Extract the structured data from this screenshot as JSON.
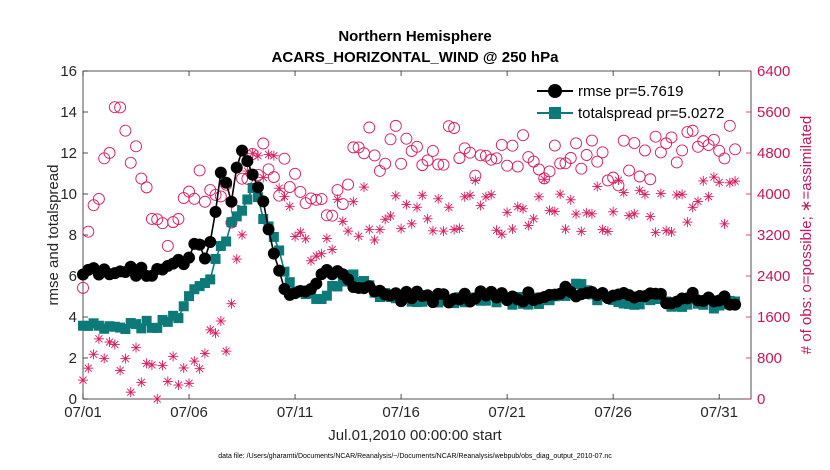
{
  "colors": {
    "rmse": "#000000",
    "spread": "#0c7a78",
    "obs": "#d81b60",
    "axis": "#262626"
  },
  "chart_data": {
    "type": "line",
    "title": "Northern Hemisphere",
    "subtitle": "ACARS_HORIZONTAL_WIND @ 250 hPa",
    "xlabel": "Jul.01,2010 00:00:00 start",
    "ylabel": "rmse and totalspread",
    "ylabel_right": "# of obs: o=possible; ∗=assimilated",
    "xlim": [
      0,
      31.5
    ],
    "ylim": [
      0,
      16
    ],
    "ylim_right": [
      0,
      6400
    ],
    "x_tick_values": [
      0,
      5,
      10,
      15,
      20,
      25,
      30
    ],
    "x_tick_labels": [
      "07/01",
      "07/06",
      "07/11",
      "07/16",
      "07/21",
      "07/26",
      "07/31"
    ],
    "y_ticks": [
      0,
      2,
      4,
      6,
      8,
      10,
      12,
      14,
      16
    ],
    "y_ticks_right": [
      0,
      800,
      1600,
      2400,
      3200,
      4000,
      4800,
      5600,
      6400
    ],
    "legend_position": "top-right",
    "footnote": "data file: /Users/gharamti/Documents/NCAR/Reanalysis/~/Documents/NCAR/Reanalysis/webpub/obs_diag_output_2010-07.nc",
    "series": [
      {
        "name": "rmse",
        "legend": "rmse pr=5.7619",
        "marker": "circle",
        "anchors": [
          [
            0,
            6.3
          ],
          [
            1.0,
            6.1
          ],
          [
            2.0,
            6.2
          ],
          [
            3.0,
            6.2
          ],
          [
            4.0,
            6.3
          ],
          [
            4.5,
            6.6
          ],
          [
            5.0,
            7.0
          ],
          [
            5.5,
            7.7
          ],
          [
            5.8,
            6.8
          ],
          [
            6.0,
            7.7
          ],
          [
            6.3,
            9.5
          ],
          [
            6.5,
            11.0
          ],
          [
            6.8,
            10.5
          ],
          [
            7.0,
            9.5
          ],
          [
            7.3,
            11.5
          ],
          [
            7.6,
            12.1
          ],
          [
            7.9,
            11.3
          ],
          [
            8.2,
            10.5
          ],
          [
            8.5,
            9.5
          ],
          [
            8.8,
            7.8
          ],
          [
            9.2,
            6.2
          ],
          [
            9.6,
            5.3
          ],
          [
            10.0,
            5.1
          ],
          [
            10.5,
            5.2
          ],
          [
            11.0,
            5.6
          ],
          [
            11.5,
            6.1
          ],
          [
            12.0,
            6.3
          ],
          [
            12.5,
            5.9
          ],
          [
            13.0,
            5.5
          ],
          [
            14.0,
            5.2
          ],
          [
            15.0,
            5.0
          ],
          [
            16.0,
            5.0
          ],
          [
            17.0,
            4.9
          ],
          [
            18.0,
            4.9
          ],
          [
            19.0,
            5.1
          ],
          [
            20.0,
            5.0
          ],
          [
            21.0,
            5.0
          ],
          [
            22.0,
            5.1
          ],
          [
            23.0,
            5.3
          ],
          [
            24.0,
            5.0
          ],
          [
            25.0,
            5.0
          ],
          [
            26.0,
            5.0
          ],
          [
            27.0,
            4.9
          ],
          [
            28.0,
            4.9
          ],
          [
            29.0,
            5.0
          ],
          [
            30.0,
            4.8
          ],
          [
            31.0,
            4.7
          ],
          [
            31.4,
            4.6
          ]
        ]
      },
      {
        "name": "totalspread",
        "legend": "totalspread pr=5.0272",
        "marker": "square",
        "anchors": [
          [
            0,
            3.5
          ],
          [
            1.0,
            3.5
          ],
          [
            2.0,
            3.5
          ],
          [
            3.0,
            3.6
          ],
          [
            4.0,
            3.7
          ],
          [
            4.5,
            4.0
          ],
          [
            5.0,
            4.8
          ],
          [
            5.5,
            5.5
          ],
          [
            6.0,
            6.0
          ],
          [
            6.5,
            7.3
          ],
          [
            7.0,
            8.5
          ],
          [
            7.5,
            9.2
          ],
          [
            7.8,
            9.6
          ],
          [
            8.1,
            10.7
          ],
          [
            8.5,
            8.8
          ],
          [
            9.0,
            8.0
          ],
          [
            9.5,
            6.4
          ],
          [
            10.0,
            5.4
          ],
          [
            10.5,
            5.0
          ],
          [
            11.0,
            5.0
          ],
          [
            11.5,
            5.2
          ],
          [
            12.0,
            5.6
          ],
          [
            12.5,
            6.1
          ],
          [
            13.0,
            5.7
          ],
          [
            13.5,
            5.5
          ],
          [
            14.0,
            5.0
          ],
          [
            15.0,
            4.9
          ],
          [
            16.0,
            4.8
          ],
          [
            17.0,
            4.8
          ],
          [
            18.0,
            4.8
          ],
          [
            19.0,
            4.9
          ],
          [
            20.0,
            4.8
          ],
          [
            21.0,
            4.8
          ],
          [
            22.0,
            4.9
          ],
          [
            23.0,
            5.2
          ],
          [
            23.5,
            5.6
          ],
          [
            24.0,
            4.9
          ],
          [
            25.0,
            4.8
          ],
          [
            26.0,
            4.8
          ],
          [
            27.0,
            4.7
          ],
          [
            28.0,
            4.7
          ],
          [
            29.0,
            4.7
          ],
          [
            30.0,
            4.6
          ],
          [
            31.0,
            4.6
          ],
          [
            31.4,
            4.6
          ]
        ]
      },
      {
        "name": "possible",
        "marker": "open-circle",
        "axis": "right",
        "anchors": [
          [
            0,
            2400
          ],
          [
            1.0,
            4400
          ],
          [
            1.5,
            5300
          ],
          [
            2.0,
            5400
          ],
          [
            3.0,
            3800
          ],
          [
            4.0,
            3200
          ],
          [
            5.0,
            4200
          ],
          [
            6.0,
            4200
          ],
          [
            7.0,
            3600
          ],
          [
            8.0,
            5000
          ],
          [
            9.0,
            4200
          ],
          [
            10.0,
            4500
          ],
          [
            11.0,
            3900
          ],
          [
            12.0,
            3900
          ],
          [
            13.0,
            4800
          ],
          [
            14.0,
            4900
          ],
          [
            15.0,
            5000
          ],
          [
            16.0,
            4900
          ],
          [
            17.0,
            4900
          ],
          [
            18.0,
            4900
          ],
          [
            19.0,
            4400
          ],
          [
            20.0,
            4700
          ],
          [
            21.0,
            4800
          ],
          [
            22.0,
            4700
          ],
          [
            23.0,
            4800
          ],
          [
            24.0,
            4800
          ],
          [
            25.0,
            4600
          ],
          [
            26.0,
            4600
          ],
          [
            27.0,
            4700
          ],
          [
            28.0,
            4900
          ],
          [
            29.0,
            4800
          ],
          [
            30.0,
            4900
          ],
          [
            31.0,
            4900
          ],
          [
            31.4,
            5100
          ]
        ]
      },
      {
        "name": "assimilated",
        "marker": "asterisk",
        "axis": "right",
        "anchors": [
          [
            0,
            500
          ],
          [
            1.0,
            800
          ],
          [
            2.0,
            800
          ],
          [
            3.0,
            300
          ],
          [
            4.0,
            300
          ],
          [
            5.0,
            500
          ],
          [
            6.0,
            800
          ],
          [
            7.0,
            1400
          ],
          [
            7.5,
            3000
          ],
          [
            8.0,
            4800
          ],
          [
            9.0,
            4200
          ],
          [
            10.0,
            3000
          ],
          [
            11.0,
            3200
          ],
          [
            12.0,
            3400
          ],
          [
            13.0,
            3600
          ],
          [
            14.0,
            3600
          ],
          [
            15.0,
            3800
          ],
          [
            16.0,
            3800
          ],
          [
            17.0,
            3600
          ],
          [
            18.0,
            3800
          ],
          [
            19.0,
            3700
          ],
          [
            20.0,
            3700
          ],
          [
            21.0,
            3900
          ],
          [
            22.0,
            3800
          ],
          [
            23.0,
            3800
          ],
          [
            24.0,
            3800
          ],
          [
            25.0,
            3800
          ],
          [
            26.0,
            3600
          ],
          [
            27.0,
            3700
          ],
          [
            28.0,
            3800
          ],
          [
            29.0,
            3900
          ],
          [
            30.0,
            3800
          ],
          [
            31.0,
            3800
          ],
          [
            31.4,
            3800
          ]
        ]
      }
    ]
  }
}
